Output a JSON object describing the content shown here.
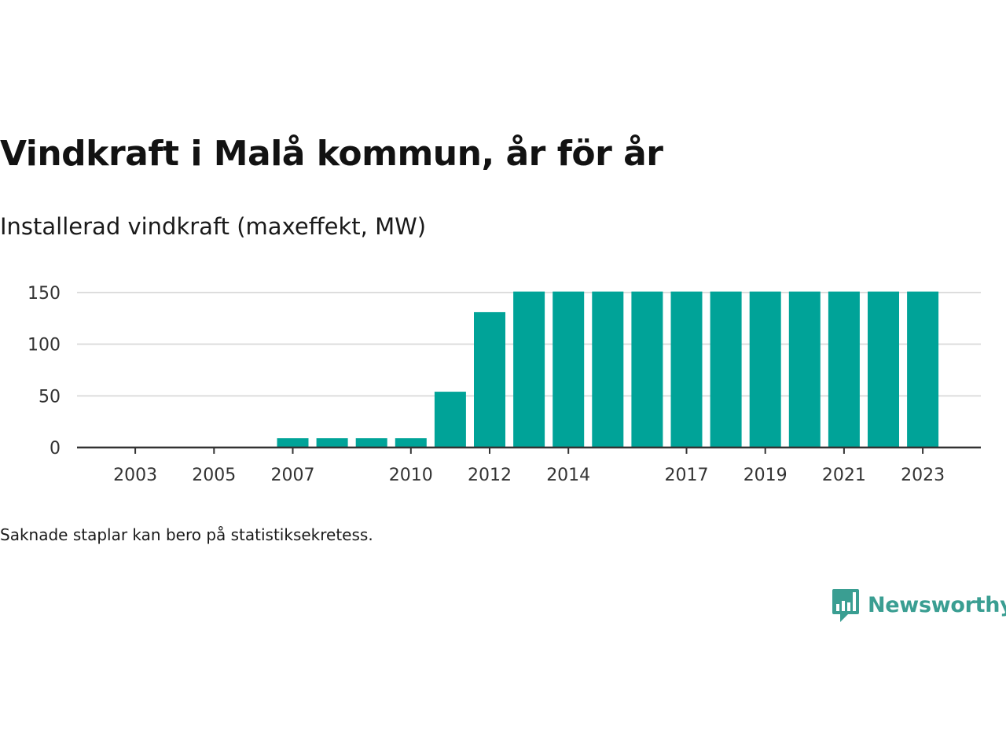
{
  "title": "Vindkraft i Malå kommun, år för år",
  "subtitle": "Installerad vindkraft (maxeffekt, MW)",
  "note": "Saknade staplar kan bero på statistiksekretess.",
  "logo": {
    "text": "Newsworthy",
    "icon": "newsworthy-logo-icon"
  },
  "colors": {
    "bar": "#00a398",
    "grid": "#dddddd",
    "axis": "#333333",
    "brand": "#3a9e92"
  },
  "chart_data": {
    "type": "bar",
    "title": "Vindkraft i Malå kommun, år för år",
    "subtitle": "Installerad vindkraft (maxeffekt, MW)",
    "xlabel": "",
    "ylabel": "",
    "categories": [
      2002,
      2003,
      2004,
      2005,
      2006,
      2007,
      2008,
      2009,
      2010,
      2011,
      2012,
      2013,
      2014,
      2015,
      2016,
      2017,
      2018,
      2019,
      2020,
      2021,
      2022,
      2023
    ],
    "values": [
      0,
      0,
      0,
      0,
      0,
      9,
      9,
      9,
      9,
      54,
      131,
      151,
      151,
      151,
      151,
      151,
      151,
      151,
      151,
      151,
      151,
      151
    ],
    "x_tick_labels": [
      "2003",
      "2005",
      "2007",
      "2010",
      "2012",
      "2014",
      "2017",
      "2019",
      "2021",
      "2023"
    ],
    "y_ticks": [
      0,
      50,
      100,
      150
    ],
    "ylim": [
      0,
      150
    ],
    "grid": true,
    "legend": "none"
  }
}
